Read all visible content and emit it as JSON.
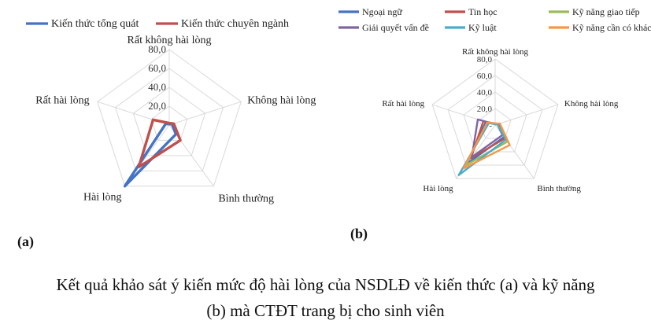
{
  "chart_data": [
    {
      "type": "radar",
      "panel_label": "(a)",
      "categories": [
        "Rất không hài lòng",
        "Không hài lòng",
        "Bình thường",
        "Hài lòng",
        "Rất hài lòng"
      ],
      "radial_ticks": [
        "-",
        "20,0",
        "40,0",
        "60,0",
        "80,0"
      ],
      "rmax": 80,
      "grid": true,
      "legend_position": "top",
      "series": [
        {
          "name": "Kiến thức tổng quát",
          "color": "#4472c4",
          "values": [
            1,
            3,
            12,
            80,
            4
          ]
        },
        {
          "name": "Kiến thức chuyên ngành",
          "color": "#c0504d",
          "values": [
            2,
            5,
            20,
            55,
            18
          ]
        }
      ]
    },
    {
      "type": "radar",
      "panel_label": "(b)",
      "categories": [
        "Rất không hài lòng",
        "Không hài lòng",
        "Bình thường",
        "Hài lòng",
        "Rất hài lòng"
      ],
      "radial_ticks": [
        "-",
        "20,0",
        "40,0",
        "60,0",
        "80,0"
      ],
      "rmax": 80,
      "grid": true,
      "legend_position": "top",
      "series": [
        {
          "name": "Ngoại ngữ",
          "color": "#4472c4",
          "values": [
            2,
            5,
            18,
            58,
            12
          ]
        },
        {
          "name": "Tin học",
          "color": "#c0504d",
          "values": [
            1,
            4,
            20,
            50,
            15
          ]
        },
        {
          "name": "Kỹ năng giao tiếp",
          "color": "#9bbb59",
          "values": [
            1,
            3,
            25,
            60,
            10
          ]
        },
        {
          "name": "Giải quyết vấn đề",
          "color": "#8064a2",
          "values": [
            1,
            3,
            15,
            48,
            22
          ]
        },
        {
          "name": "Kỹ luật",
          "color": "#4bacc6",
          "values": [
            1,
            3,
            22,
            75,
            8
          ]
        },
        {
          "name": "Kỹ năng cần có khác",
          "color": "#f79646",
          "values": [
            2,
            6,
            30,
            65,
            10
          ]
        }
      ]
    }
  ],
  "caption": {
    "line1": "Kết quả khảo sát ý kiến mức độ hài lòng của NSDLĐ về kiến thức (a) và kỹ năng",
    "line2": "(b) mà CTĐT trang bị cho sinh viên"
  }
}
